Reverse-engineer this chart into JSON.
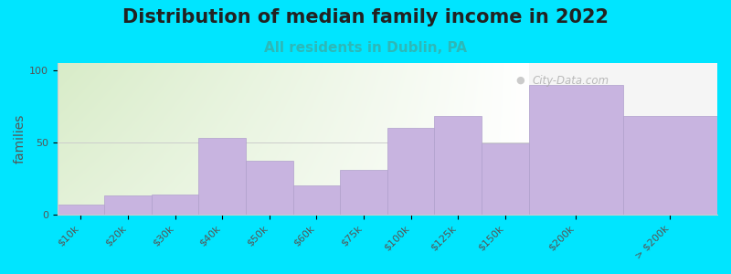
{
  "title": "Distribution of median family income in 2022",
  "subtitle": "All residents in Dublin, PA",
  "ylabel": "families",
  "categories": [
    "$10k",
    "$20k",
    "$30k",
    "$40k",
    "$50k",
    "$60k",
    "$75k",
    "$100k",
    "$125k",
    "$150k",
    "$200k",
    "> $200k"
  ],
  "values": [
    7,
    13,
    14,
    53,
    37,
    20,
    31,
    60,
    68,
    49,
    90,
    68
  ],
  "bar_color": "#c8b4e0",
  "bar_edgecolor": "#b0a0cc",
  "background_color": "#00e5ff",
  "gradient_left_color": "#d8ecc8",
  "gradient_right_color": "#f0f0f0",
  "gradient_right_white_color": "#f8f8f8",
  "title_fontsize": 15,
  "subtitle_fontsize": 11,
  "subtitle_color": "#2db8b8",
  "ylabel_fontsize": 10,
  "tick_fontsize": 8,
  "yticks": [
    0,
    50,
    100
  ],
  "ylim": [
    0,
    105
  ],
  "watermark": "City-Data.com"
}
